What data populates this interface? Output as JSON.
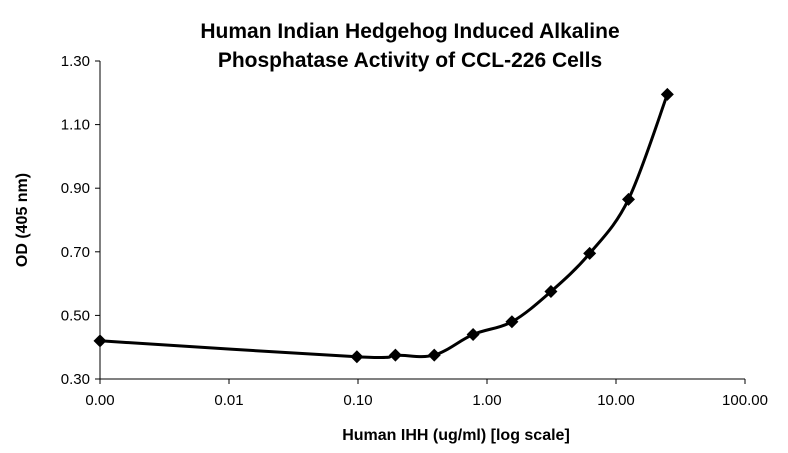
{
  "chart_data": {
    "type": "line",
    "title_lines": [
      "Human Indian Hedgehog Induced Alkaline",
      "Phosphatase Activity of CCL-226 Cells"
    ],
    "xlabel": "Human IHH (ug/ml) [log scale]",
    "ylabel": "OD (405 nm)",
    "x_scale": "log",
    "xlim": [
      0.001,
      100
    ],
    "ylim": [
      0.3,
      1.3
    ],
    "x_ticks": [
      0.001,
      0.01,
      0.1,
      1,
      10,
      100
    ],
    "x_tick_labels": [
      "0.00",
      "0.01",
      "0.10",
      "1.00",
      "10.00",
      "100.00"
    ],
    "y_ticks": [
      0.3,
      0.5,
      0.7,
      0.9,
      1.1,
      1.3
    ],
    "y_tick_labels": [
      "0.30",
      "0.50",
      "0.70",
      "0.90",
      "1.10",
      "1.30"
    ],
    "grid": false,
    "legend": "none",
    "series": [
      {
        "marker": "diamond",
        "color": "#000000",
        "points": [
          {
            "x": 0.001,
            "y": 0.42
          },
          {
            "x": 0.098,
            "y": 0.37
          },
          {
            "x": 0.195,
            "y": 0.375
          },
          {
            "x": 0.39,
            "y": 0.375
          },
          {
            "x": 0.78,
            "y": 0.44
          },
          {
            "x": 1.56,
            "y": 0.48
          },
          {
            "x": 3.13,
            "y": 0.575
          },
          {
            "x": 6.25,
            "y": 0.695
          },
          {
            "x": 12.5,
            "y": 0.865
          },
          {
            "x": 25,
            "y": 1.195
          }
        ]
      }
    ]
  }
}
